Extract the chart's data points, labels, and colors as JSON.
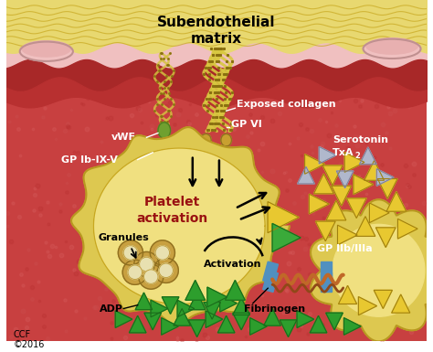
{
  "title": "Subendothelial\nmatrix",
  "title_fontsize": 10,
  "bg_color": "#c84040",
  "tissue_yellow_color": "#e8d870",
  "tissue_pink_color": "#f0c8c8",
  "platelet_outer_color": "#ddc850",
  "platelet_inner_color": "#f0e080",
  "platelet_edge_color": "#b89820",
  "platelet_text": "Platelet\nactivation",
  "platelet_text_color": "#991111",
  "green_triangle_color": "#2d9e2d",
  "green_triangle_edge": "#1a6a1a",
  "yellow_triangle_color": "#e8c830",
  "yellow_triangle_edge": "#a08010",
  "gray_triangle_color": "#b0b8cc",
  "gray_triangle_edge": "#808098",
  "vwf_color": "#88b840",
  "collagen_color": "#d8c840",
  "collagen_dot_color": "#8a7010",
  "gpvi_color": "#c8a830",
  "gpiib_color": "#5090c0",
  "fibrinogen_color1": "#c06828",
  "fibrinogen_color2": "#904818",
  "granule_outer": "#c8a040",
  "granule_inner": "#e8e0b0",
  "granule_dark": "#a07830",
  "ccf_text": "CCF\n©2016",
  "ccf_fontsize": 7
}
